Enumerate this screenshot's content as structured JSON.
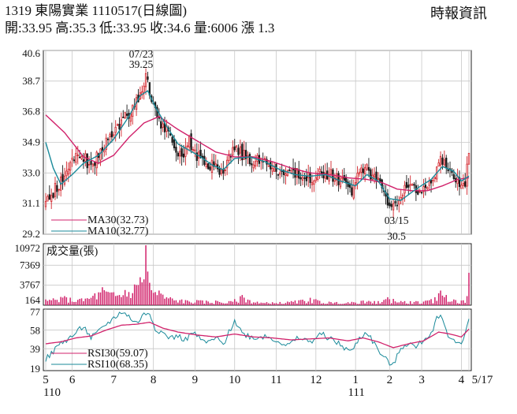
{
  "header": {
    "title": "1319  東陽實業 1110517(日線圖)",
    "ohlc": "開:33.95 高:35.3 低:33.95 收:34.6 量:6006 漲 1.3",
    "source": "時報資訊"
  },
  "colors": {
    "up": "#d2232a",
    "down": "#1a1a1a",
    "ma30": "#d1226b",
    "ma10": "#1a8a9a",
    "rsi30": "#d1226b",
    "rsi10": "#1a8a9a",
    "volume": "#d1226b",
    "grid": "#c8c8c8"
  },
  "chart_data": [
    {
      "type": "candlestick",
      "panel": "price",
      "yticks": [
        "40.6",
        "38.7",
        "36.8",
        "34.9",
        "33.0",
        "31.1",
        "29.2"
      ],
      "ylim": [
        29.2,
        40.6
      ],
      "x_axis": {
        "months": [
          "5",
          "6",
          "7",
          "8",
          "9",
          "10",
          "11",
          "12",
          "1",
          "2",
          "3",
          "4",
          "5"
        ],
        "end_label": "5/17",
        "year_labels": [
          "110",
          "111"
        ]
      },
      "annotations": [
        {
          "date": "07/23",
          "value": "39.25",
          "kind": "high"
        },
        {
          "date": "03/15",
          "value": "30.5",
          "kind": "low"
        }
      ],
      "legend": [
        {
          "label": "MA30(32.73)",
          "color_key": "ma30"
        },
        {
          "label": "MA10(32.77)",
          "color_key": "ma10"
        }
      ],
      "anchors": [
        [
          0,
          31.0
        ],
        [
          5,
          32.0
        ],
        [
          12,
          33.3
        ],
        [
          18,
          34.2
        ],
        [
          24,
          33.4
        ],
        [
          30,
          34.6
        ],
        [
          36,
          35.6
        ],
        [
          42,
          36.4
        ],
        [
          47,
          37.2
        ],
        [
          51,
          38.4
        ],
        [
          53,
          39.1
        ],
        [
          56,
          37.2
        ],
        [
          60,
          36.1
        ],
        [
          64,
          35.6
        ],
        [
          68,
          34.5
        ],
        [
          72,
          34.2
        ],
        [
          76,
          34.9
        ],
        [
          80,
          34.1
        ],
        [
          85,
          33.2
        ],
        [
          90,
          33.7
        ],
        [
          94,
          32.9
        ],
        [
          99,
          34.7
        ],
        [
          104,
          34.2
        ],
        [
          110,
          33.8
        ],
        [
          116,
          33.7
        ],
        [
          122,
          33.3
        ],
        [
          128,
          32.8
        ],
        [
          134,
          33.0
        ],
        [
          140,
          32.7
        ],
        [
          146,
          33.1
        ],
        [
          152,
          32.8
        ],
        [
          158,
          32.4
        ],
        [
          162,
          31.9
        ],
        [
          165,
          32.7
        ],
        [
          170,
          33.3
        ],
        [
          174,
          32.7
        ],
        [
          178,
          32.0
        ],
        [
          181,
          31.3
        ],
        [
          184,
          30.9
        ],
        [
          188,
          31.8
        ],
        [
          193,
          32.1
        ],
        [
          198,
          31.8
        ],
        [
          203,
          32.3
        ],
        [
          207,
          33.3
        ],
        [
          209,
          34.1
        ],
        [
          213,
          33.2
        ],
        [
          217,
          32.7
        ],
        [
          220,
          32.1
        ],
        [
          222,
          32.4
        ],
        [
          224,
          34.0
        ]
      ],
      "ma30_anchors": [
        [
          0,
          36.6
        ],
        [
          10,
          35.5
        ],
        [
          20,
          34.0
        ],
        [
          28,
          33.6
        ],
        [
          36,
          34.1
        ],
        [
          44,
          35.2
        ],
        [
          52,
          36.1
        ],
        [
          60,
          36.5
        ],
        [
          70,
          35.7
        ],
        [
          80,
          35.0
        ],
        [
          90,
          34.3
        ],
        [
          100,
          34.0
        ],
        [
          110,
          34.0
        ],
        [
          120,
          33.7
        ],
        [
          130,
          33.3
        ],
        [
          140,
          33.0
        ],
        [
          150,
          32.9
        ],
        [
          160,
          32.7
        ],
        [
          170,
          32.6
        ],
        [
          178,
          32.4
        ],
        [
          186,
          32.0
        ],
        [
          194,
          31.9
        ],
        [
          202,
          31.9
        ],
        [
          210,
          32.2
        ],
        [
          218,
          32.6
        ],
        [
          224,
          32.7
        ]
      ],
      "ma10_anchors": [
        [
          0,
          34.9
        ],
        [
          4,
          33.3
        ],
        [
          8,
          32.3
        ],
        [
          14,
          32.9
        ],
        [
          20,
          33.6
        ],
        [
          28,
          34.1
        ],
        [
          36,
          35.1
        ],
        [
          44,
          36.5
        ],
        [
          50,
          37.8
        ],
        [
          54,
          38.1
        ],
        [
          58,
          37.1
        ],
        [
          64,
          35.9
        ],
        [
          70,
          34.8
        ],
        [
          76,
          34.4
        ],
        [
          82,
          34.0
        ],
        [
          88,
          33.5
        ],
        [
          94,
          33.2
        ],
        [
          100,
          33.9
        ],
        [
          108,
          34.0
        ],
        [
          116,
          33.7
        ],
        [
          124,
          33.2
        ],
        [
          132,
          32.9
        ],
        [
          140,
          32.8
        ],
        [
          148,
          32.9
        ],
        [
          156,
          32.5
        ],
        [
          164,
          32.2
        ],
        [
          170,
          32.9
        ],
        [
          176,
          32.5
        ],
        [
          182,
          31.4
        ],
        [
          188,
          31.3
        ],
        [
          196,
          32.0
        ],
        [
          204,
          32.6
        ],
        [
          210,
          33.4
        ],
        [
          216,
          33.1
        ],
        [
          220,
          32.5
        ],
        [
          224,
          32.8
        ]
      ]
    },
    {
      "type": "bar",
      "panel": "volume",
      "title": "成交量(張)",
      "yticks": [
        "10972",
        "7369",
        "3767",
        "164"
      ],
      "ylim": [
        164,
        10972
      ],
      "peaks": [
        [
          0,
          1200
        ],
        [
          4,
          1400
        ],
        [
          10,
          1800
        ],
        [
          18,
          1300
        ],
        [
          26,
          2300
        ],
        [
          30,
          3400
        ],
        [
          36,
          2500
        ],
        [
          42,
          2900
        ],
        [
          47,
          3900
        ],
        [
          50,
          5200
        ],
        [
          53,
          10972
        ],
        [
          55,
          4200
        ],
        [
          60,
          2800
        ],
        [
          66,
          1600
        ],
        [
          72,
          1200
        ],
        [
          80,
          1100
        ],
        [
          90,
          1000
        ],
        [
          98,
          900
        ],
        [
          104,
          2000
        ],
        [
          112,
          800
        ],
        [
          120,
          700
        ],
        [
          130,
          900
        ],
        [
          140,
          1500
        ],
        [
          150,
          800
        ],
        [
          160,
          700
        ],
        [
          168,
          1000
        ],
        [
          176,
          900
        ],
        [
          181,
          1600
        ],
        [
          184,
          1300
        ],
        [
          190,
          900
        ],
        [
          196,
          900
        ],
        [
          202,
          1000
        ],
        [
          206,
          1600
        ],
        [
          209,
          2800
        ],
        [
          212,
          2000
        ],
        [
          216,
          1200
        ],
        [
          220,
          1000
        ],
        [
          223,
          1800
        ],
        [
          224,
          6006
        ]
      ]
    },
    {
      "type": "line",
      "panel": "rsi",
      "yticks": [
        "77",
        "58",
        "39",
        "19"
      ],
      "ylim": [
        19,
        77
      ],
      "legend": [
        {
          "label": "RSI30(59.07)",
          "color_key": "rsi30"
        },
        {
          "label": "RSI10(68.35)",
          "color_key": "rsi10"
        }
      ],
      "series": [
        {
          "color_key": "rsi10",
          "points": [
            [
              0,
              28
            ],
            [
              4,
              36
            ],
            [
              8,
              45
            ],
            [
              12,
              49
            ],
            [
              16,
              55
            ],
            [
              20,
              62
            ],
            [
              24,
              50
            ],
            [
              28,
              56
            ],
            [
              32,
              64
            ],
            [
              36,
              70
            ],
            [
              40,
              77
            ],
            [
              44,
              72
            ],
            [
              48,
              65
            ],
            [
              52,
              74
            ],
            [
              55,
              76
            ],
            [
              58,
              60
            ],
            [
              62,
              55
            ],
            [
              66,
              50
            ],
            [
              70,
              52
            ],
            [
              74,
              48
            ],
            [
              78,
              56
            ],
            [
              82,
              48
            ],
            [
              86,
              45
            ],
            [
              90,
              50
            ],
            [
              94,
              43
            ],
            [
              100,
              68
            ],
            [
              104,
              55
            ],
            [
              110,
              50
            ],
            [
              116,
              52
            ],
            [
              122,
              48
            ],
            [
              128,
              42
            ],
            [
              134,
              50
            ],
            [
              140,
              46
            ],
            [
              146,
              54
            ],
            [
              152,
              48
            ],
            [
              158,
              40
            ],
            [
              162,
              36
            ],
            [
              166,
              50
            ],
            [
              170,
              56
            ],
            [
              174,
              44
            ],
            [
              178,
              32
            ],
            [
              181,
              26
            ],
            [
              184,
              22
            ],
            [
              188,
              40
            ],
            [
              192,
              45
            ],
            [
              196,
              40
            ],
            [
              200,
              48
            ],
            [
              204,
              55
            ],
            [
              207,
              70
            ],
            [
              209,
              76
            ],
            [
              212,
              56
            ],
            [
              216,
              46
            ],
            [
              220,
              45
            ],
            [
              224,
              68
            ]
          ]
        },
        {
          "color_key": "rsi30",
          "points": [
            [
              0,
              44
            ],
            [
              8,
              46
            ],
            [
              16,
              50
            ],
            [
              24,
              52
            ],
            [
              32,
              58
            ],
            [
              40,
              63
            ],
            [
              48,
              64
            ],
            [
              55,
              66
            ],
            [
              62,
              60
            ],
            [
              70,
              56
            ],
            [
              80,
              53
            ],
            [
              90,
              51
            ],
            [
              100,
              54
            ],
            [
              110,
              51
            ],
            [
              120,
              50
            ],
            [
              130,
              48
            ],
            [
              140,
              49
            ],
            [
              150,
              50
            ],
            [
              160,
              47
            ],
            [
              168,
              50
            ],
            [
              176,
              46
            ],
            [
              184,
              40
            ],
            [
              192,
              44
            ],
            [
              200,
              47
            ],
            [
              208,
              56
            ],
            [
              214,
              54
            ],
            [
              220,
              51
            ],
            [
              224,
              59.07
            ]
          ]
        }
      ]
    }
  ]
}
